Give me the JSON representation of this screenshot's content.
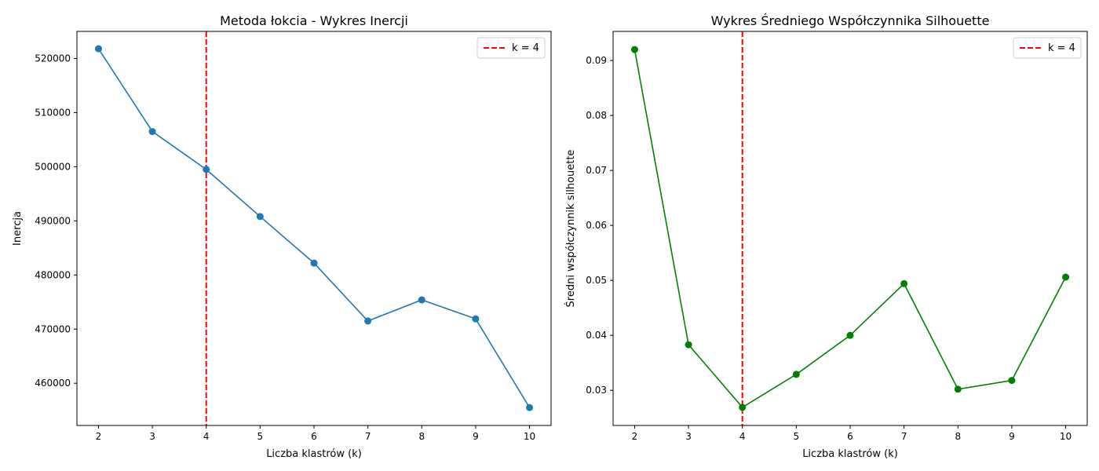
{
  "chart_data": [
    {
      "type": "line",
      "title": "Metoda łokcia - Wykres Inercji",
      "xlabel": "Liczba klastrów (k)",
      "ylabel": "Inercja",
      "x": [
        2,
        3,
        4,
        5,
        6,
        7,
        8,
        9,
        10
      ],
      "xticks": [
        "2",
        "3",
        "4",
        "5",
        "6",
        "7",
        "8",
        "9",
        "10"
      ],
      "yticks": [
        460000,
        470000,
        480000,
        490000,
        500000,
        510000,
        520000
      ],
      "xlim": [
        1.6,
        10.4
      ],
      "ylim": [
        452200,
        525000
      ],
      "series": [
        {
          "values": [
            521800,
            506500,
            499500,
            490800,
            482200,
            471500,
            475400,
            471900,
            455500
          ],
          "color": "#1f77b4",
          "marker": "circle"
        }
      ],
      "vline": {
        "x": 4,
        "label": "k = 4",
        "color": "#ff0000",
        "style": "dashed"
      },
      "legend_position": "top-right",
      "grid": false
    },
    {
      "type": "line",
      "title": "Wykres Średniego Współczynnika Silhouette",
      "xlabel": "Liczba klastrów (k)",
      "ylabel": "Średni współczynnik silhouette",
      "x": [
        2,
        3,
        4,
        5,
        6,
        7,
        8,
        9,
        10
      ],
      "xticks": [
        "2",
        "3",
        "4",
        "5",
        "6",
        "7",
        "8",
        "9",
        "10"
      ],
      "yticks": [
        0.03,
        0.04,
        0.05,
        0.06,
        0.07,
        0.08,
        0.09
      ],
      "xlim": [
        1.6,
        10.4
      ],
      "ylim": [
        0.0236,
        0.0953
      ],
      "series": [
        {
          "values": [
            0.092,
            0.0383,
            0.0269,
            0.0329,
            0.04,
            0.0494,
            0.0302,
            0.0318,
            0.0506
          ],
          "color": "#008000",
          "marker": "circle"
        }
      ],
      "vline": {
        "x": 4,
        "label": "k = 4",
        "color": "#ff0000",
        "style": "dashed"
      },
      "legend_position": "top-right",
      "grid": false
    }
  ]
}
